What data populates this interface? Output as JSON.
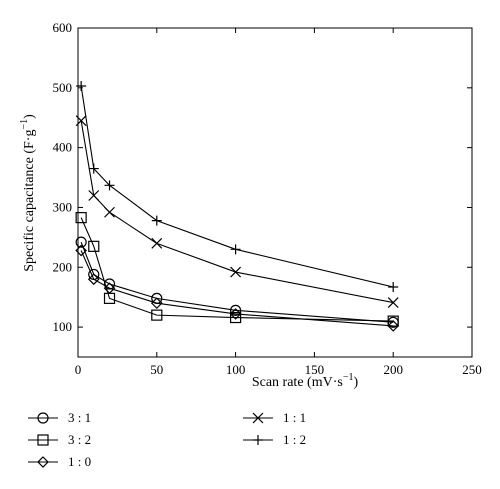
{
  "chart_data": {
    "type": "line",
    "xlabel": "Scan rate",
    "xlabel_unit": "(mV·s",
    "xlabel_unit_exp": "−1",
    "xlabel_unit_close": ")",
    "ylabel": "Specific capacitance (F·g",
    "ylabel_exp": "−1",
    "ylabel_close": ")",
    "xlim": [
      0,
      250
    ],
    "ylim": [
      50,
      600
    ],
    "xticks": [
      0,
      50,
      100,
      150,
      200,
      250
    ],
    "yticks": [
      100,
      200,
      300,
      400,
      500,
      600
    ],
    "grid": false,
    "legend_position": "bottom",
    "series": [
      {
        "name": "3 : 1",
        "marker": "circle",
        "x": [
          2,
          10,
          20,
          50,
          100,
          200
        ],
        "y": [
          242,
          188,
          172,
          148,
          128,
          108
        ]
      },
      {
        "name": "3 : 2",
        "marker": "square",
        "x": [
          2,
          10,
          20,
          50,
          100,
          200
        ],
        "y": [
          283,
          235,
          148,
          120,
          116,
          110
        ]
      },
      {
        "name": "1 : 0",
        "marker": "diamond",
        "x": [
          2,
          10,
          20,
          50,
          100,
          200
        ],
        "y": [
          228,
          180,
          165,
          140,
          122,
          102
        ]
      },
      {
        "name": "1 : 1",
        "marker": "x",
        "x": [
          2,
          10,
          20,
          50,
          100,
          200
        ],
        "y": [
          445,
          320,
          292,
          240,
          192,
          141
        ]
      },
      {
        "name": "1 : 2",
        "marker": "plus",
        "x": [
          2,
          10,
          20,
          50,
          100,
          200
        ],
        "y": [
          503,
          365,
          337,
          278,
          230,
          167
        ]
      }
    ]
  }
}
